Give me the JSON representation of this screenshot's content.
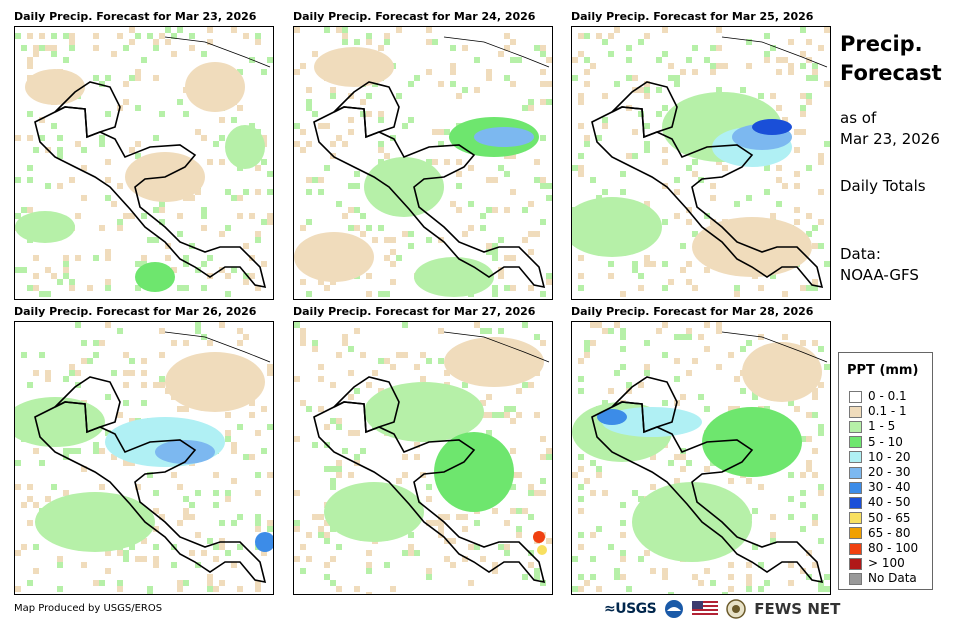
{
  "panels": [
    {
      "title": "Daily Precip. Forecast for Mar 23, 2026"
    },
    {
      "title": "Daily Precip. Forecast for Mar 24, 2026"
    },
    {
      "title": "Daily Precip. Forecast for Mar 25, 2026"
    },
    {
      "title": "Daily Precip. Forecast for Mar 26, 2026"
    },
    {
      "title": "Daily Precip. Forecast for Mar 27, 2026"
    },
    {
      "title": "Daily Precip. Forecast for Mar 28, 2026"
    }
  ],
  "sidebar": {
    "title_line1": "Precip.",
    "title_line2": "Forecast",
    "asof_line1": "as of",
    "asof_line2": "Mar 23, 2026",
    "totals": "Daily Totals",
    "data_line1": "Data:",
    "data_line2": "NOAA-GFS"
  },
  "legend": {
    "title": "PPT (mm)",
    "items": [
      {
        "label": "0 - 0.1",
        "color": "#ffffff"
      },
      {
        "label": "0.1 - 1",
        "color": "#f0dcbc"
      },
      {
        "label": "1 - 5",
        "color": "#b6f0a8"
      },
      {
        "label": "5 - 10",
        "color": "#6ee66e"
      },
      {
        "label": "10 - 20",
        "color": "#b0f0f4"
      },
      {
        "label": "20 - 30",
        "color": "#7cb8f0"
      },
      {
        "label": "30 - 40",
        "color": "#3c8ce8"
      },
      {
        "label": "40 - 50",
        "color": "#1a4fd8"
      },
      {
        "label": "50 - 65",
        "color": "#f8e060"
      },
      {
        "label": "65 - 80",
        "color": "#f0a000"
      },
      {
        "label": "80 - 100",
        "color": "#f04010"
      },
      {
        "label": "> 100",
        "color": "#b01818"
      },
      {
        "label": "No Data",
        "color": "#999999"
      }
    ]
  },
  "footer": {
    "credit": "Map Produced by USGS/EROS",
    "usgs": "≈USGS",
    "fews": "FEWS NET"
  }
}
